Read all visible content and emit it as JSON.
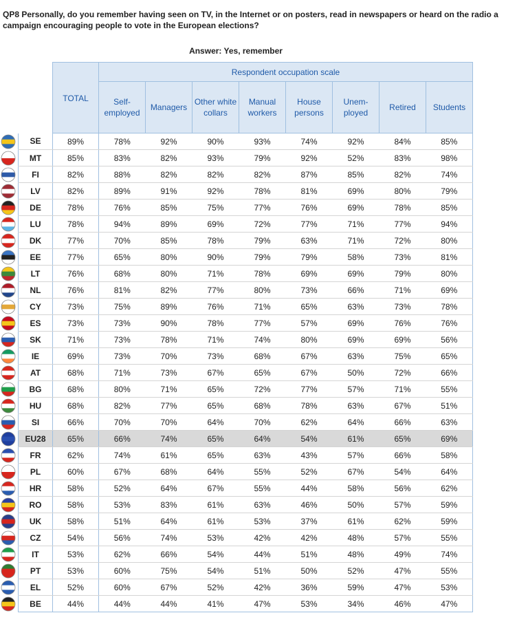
{
  "header": {
    "question": "QP8 Personally, do you remember having seen on TV, in the Internet or on posters, read in newspapers or heard on the radio a campaign encouraging people to vote in the European elections?",
    "answer": "Answer: Yes, remember",
    "total_label": "TOTAL",
    "group_label": "Respondent occupation scale",
    "columns": [
      "Self-employed",
      "Managers",
      "Other white collars",
      "Manual workers",
      "House persons",
      "Unem-ployed",
      "Retired",
      "Students"
    ]
  },
  "table": {
    "rows": [
      {
        "code": "SE",
        "total": "89%",
        "values": [
          "78%",
          "92%",
          "90%",
          "93%",
          "74%",
          "92%",
          "84%",
          "85%"
        ]
      },
      {
        "code": "MT",
        "total": "85%",
        "values": [
          "83%",
          "82%",
          "93%",
          "79%",
          "92%",
          "52%",
          "83%",
          "98%"
        ]
      },
      {
        "code": "FI",
        "total": "82%",
        "values": [
          "88%",
          "82%",
          "82%",
          "82%",
          "87%",
          "85%",
          "82%",
          "74%"
        ]
      },
      {
        "code": "LV",
        "total": "82%",
        "values": [
          "89%",
          "91%",
          "92%",
          "78%",
          "81%",
          "69%",
          "80%",
          "79%"
        ]
      },
      {
        "code": "DE",
        "total": "78%",
        "values": [
          "76%",
          "85%",
          "75%",
          "77%",
          "76%",
          "69%",
          "78%",
          "85%"
        ]
      },
      {
        "code": "LU",
        "total": "78%",
        "values": [
          "94%",
          "89%",
          "69%",
          "72%",
          "77%",
          "71%",
          "77%",
          "94%"
        ]
      },
      {
        "code": "DK",
        "total": "77%",
        "values": [
          "70%",
          "85%",
          "78%",
          "79%",
          "63%",
          "71%",
          "72%",
          "80%"
        ]
      },
      {
        "code": "EE",
        "total": "77%",
        "values": [
          "65%",
          "80%",
          "90%",
          "79%",
          "79%",
          "58%",
          "73%",
          "81%"
        ]
      },
      {
        "code": "LT",
        "total": "76%",
        "values": [
          "68%",
          "80%",
          "71%",
          "78%",
          "69%",
          "69%",
          "79%",
          "80%"
        ]
      },
      {
        "code": "NL",
        "total": "76%",
        "values": [
          "81%",
          "82%",
          "77%",
          "80%",
          "73%",
          "66%",
          "71%",
          "69%"
        ]
      },
      {
        "code": "CY",
        "total": "73%",
        "values": [
          "75%",
          "89%",
          "76%",
          "71%",
          "65%",
          "63%",
          "73%",
          "78%"
        ]
      },
      {
        "code": "ES",
        "total": "73%",
        "values": [
          "73%",
          "90%",
          "78%",
          "77%",
          "57%",
          "69%",
          "76%",
          "76%"
        ]
      },
      {
        "code": "SK",
        "total": "71%",
        "values": [
          "73%",
          "78%",
          "71%",
          "74%",
          "80%",
          "69%",
          "69%",
          "56%"
        ]
      },
      {
        "code": "IE",
        "total": "69%",
        "values": [
          "73%",
          "70%",
          "73%",
          "68%",
          "67%",
          "63%",
          "75%",
          "65%"
        ]
      },
      {
        "code": "AT",
        "total": "68%",
        "values": [
          "71%",
          "73%",
          "67%",
          "65%",
          "67%",
          "50%",
          "72%",
          "66%"
        ]
      },
      {
        "code": "BG",
        "total": "68%",
        "values": [
          "80%",
          "71%",
          "65%",
          "72%",
          "77%",
          "57%",
          "71%",
          "55%"
        ]
      },
      {
        "code": "HU",
        "total": "68%",
        "values": [
          "82%",
          "77%",
          "65%",
          "68%",
          "78%",
          "63%",
          "67%",
          "51%"
        ]
      },
      {
        "code": "SI",
        "total": "66%",
        "values": [
          "70%",
          "70%",
          "64%",
          "70%",
          "62%",
          "64%",
          "66%",
          "63%"
        ]
      },
      {
        "code": "EU28",
        "total": "65%",
        "values": [
          "66%",
          "74%",
          "65%",
          "64%",
          "54%",
          "61%",
          "65%",
          "69%"
        ]
      },
      {
        "code": "FR",
        "total": "62%",
        "values": [
          "74%",
          "61%",
          "65%",
          "63%",
          "43%",
          "57%",
          "66%",
          "58%"
        ]
      },
      {
        "code": "PL",
        "total": "60%",
        "values": [
          "67%",
          "68%",
          "64%",
          "55%",
          "52%",
          "67%",
          "54%",
          "64%"
        ]
      },
      {
        "code": "HR",
        "total": "58%",
        "values": [
          "52%",
          "64%",
          "67%",
          "55%",
          "44%",
          "58%",
          "56%",
          "62%"
        ]
      },
      {
        "code": "RO",
        "total": "58%",
        "values": [
          "53%",
          "83%",
          "61%",
          "63%",
          "46%",
          "50%",
          "57%",
          "59%"
        ]
      },
      {
        "code": "UK",
        "total": "58%",
        "values": [
          "51%",
          "64%",
          "61%",
          "53%",
          "37%",
          "61%",
          "62%",
          "59%"
        ]
      },
      {
        "code": "CZ",
        "total": "54%",
        "values": [
          "56%",
          "74%",
          "53%",
          "42%",
          "42%",
          "48%",
          "57%",
          "55%"
        ]
      },
      {
        "code": "IT",
        "total": "53%",
        "values": [
          "62%",
          "66%",
          "54%",
          "44%",
          "51%",
          "48%",
          "49%",
          "74%"
        ]
      },
      {
        "code": "PT",
        "total": "53%",
        "values": [
          "60%",
          "75%",
          "54%",
          "51%",
          "50%",
          "52%",
          "47%",
          "55%"
        ]
      },
      {
        "code": "EL",
        "total": "52%",
        "values": [
          "60%",
          "67%",
          "52%",
          "42%",
          "36%",
          "59%",
          "47%",
          "53%"
        ]
      },
      {
        "code": "BE",
        "total": "44%",
        "values": [
          "44%",
          "44%",
          "41%",
          "47%",
          "53%",
          "34%",
          "46%",
          "47%"
        ]
      }
    ]
  }
}
